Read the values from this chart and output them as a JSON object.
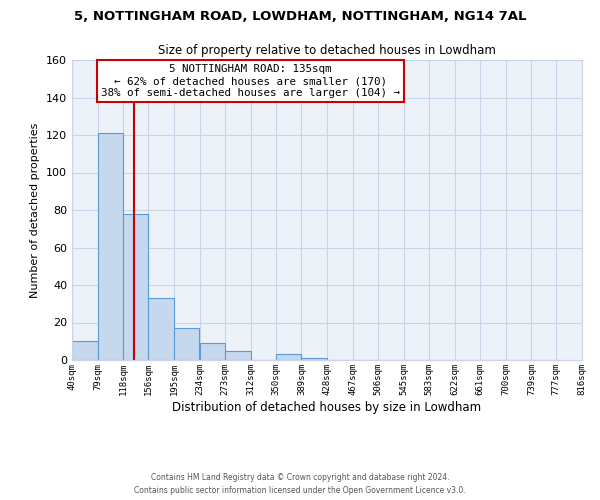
{
  "title": "5, NOTTINGHAM ROAD, LOWDHAM, NOTTINGHAM, NG14 7AL",
  "subtitle": "Size of property relative to detached houses in Lowdham",
  "xlabel": "Distribution of detached houses by size in Lowdham",
  "ylabel": "Number of detached properties",
  "bar_values": [
    10,
    121,
    78,
    33,
    17,
    9,
    5,
    0,
    3,
    1,
    0,
    0,
    0,
    0,
    0,
    0,
    0,
    0,
    0
  ],
  "bin_edges": [
    40,
    79,
    118,
    156,
    195,
    234,
    273,
    312,
    350,
    389,
    428,
    467,
    506,
    545,
    583,
    622,
    661,
    700,
    739,
    777
  ],
  "tick_labels": [
    "40sqm",
    "79sqm",
    "118sqm",
    "156sqm",
    "195sqm",
    "234sqm",
    "273sqm",
    "312sqm",
    "350sqm",
    "389sqm",
    "428sqm",
    "467sqm",
    "506sqm",
    "545sqm",
    "583sqm",
    "622sqm",
    "661sqm",
    "700sqm",
    "739sqm",
    "777sqm",
    "816sqm"
  ],
  "bar_color": "#c5d8ed",
  "bar_edge_color": "#5b9bd5",
  "vline_x": 135,
  "vline_color": "#cc0000",
  "ylim": [
    0,
    160
  ],
  "yticks": [
    0,
    20,
    40,
    60,
    80,
    100,
    120,
    140,
    160
  ],
  "annotation_title": "5 NOTTINGHAM ROAD: 135sqm",
  "annotation_line1": "← 62% of detached houses are smaller (170)",
  "annotation_line2": "38% of semi-detached houses are larger (104) →",
  "annotation_box_color": "#ffffff",
  "annotation_box_edge_color": "#cc0000",
  "footer_line1": "Contains HM Land Registry data © Crown copyright and database right 2024.",
  "footer_line2": "Contains public sector information licensed under the Open Government Licence v3.0.",
  "background_color": "#edf2f9",
  "plot_background": "#ffffff",
  "grid_color": "#c8d4e8"
}
